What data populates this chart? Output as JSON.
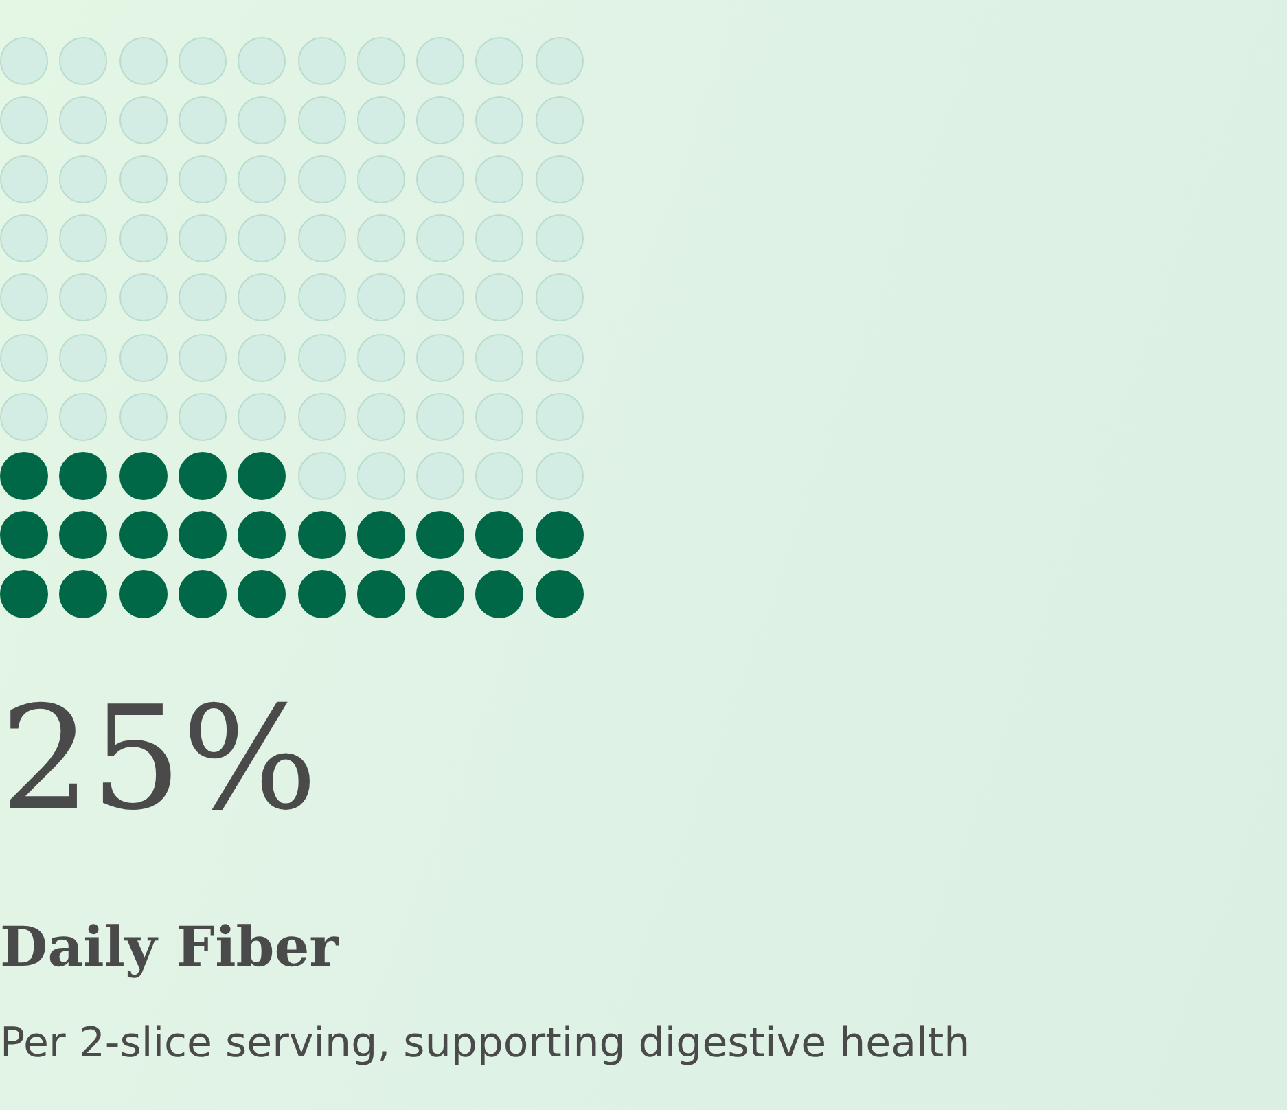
{
  "chart_data": {
    "type": "other",
    "title": "Daily Fiber",
    "subtitle": "Per 2-slice serving, supporting digestive health",
    "values": [
      25
    ],
    "value_labels": [
      "25%"
    ],
    "color": "#006847"
  }
}
